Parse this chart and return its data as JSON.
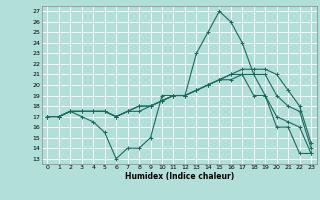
{
  "title": "",
  "xlabel": "Humidex (Indice chaleur)",
  "ylabel": "",
  "background_color": "#b2dfda",
  "grid_color": "#ffffff",
  "line_color": "#1a6b5e",
  "xlim": [
    -0.5,
    23.5
  ],
  "ylim": [
    12.5,
    27.5
  ],
  "yticks": [
    13,
    14,
    15,
    16,
    17,
    18,
    19,
    20,
    21,
    22,
    23,
    24,
    25,
    26,
    27
  ],
  "xticks": [
    0,
    1,
    2,
    3,
    4,
    5,
    6,
    7,
    8,
    9,
    10,
    11,
    12,
    13,
    14,
    15,
    16,
    17,
    18,
    19,
    20,
    21,
    22,
    23
  ],
  "lines": [
    {
      "x": [
        0,
        1,
        2,
        3,
        4,
        5,
        6,
        7,
        8,
        9,
        10,
        11,
        12,
        13,
        14,
        15,
        16,
        17,
        18,
        19,
        20,
        21,
        22,
        23
      ],
      "y": [
        17,
        17,
        17.5,
        17,
        16.5,
        15.5,
        13,
        14,
        14,
        15,
        19,
        19,
        19,
        23,
        25,
        27,
        26,
        24,
        21,
        19,
        16,
        16,
        13.5,
        13.5
      ]
    },
    {
      "x": [
        0,
        1,
        2,
        3,
        4,
        5,
        6,
        7,
        8,
        9,
        10,
        11,
        12,
        13,
        14,
        15,
        16,
        17,
        18,
        19,
        20,
        21,
        22,
        23
      ],
      "y": [
        17,
        17,
        17.5,
        17.5,
        17.5,
        17.5,
        17,
        17.5,
        18,
        18,
        18.5,
        19,
        19,
        19.5,
        20,
        20.5,
        20.5,
        21,
        19,
        19,
        17,
        16.5,
        16,
        13.5
      ]
    },
    {
      "x": [
        0,
        1,
        2,
        3,
        4,
        5,
        6,
        7,
        8,
        9,
        10,
        11,
        12,
        13,
        14,
        15,
        16,
        17,
        18,
        19,
        20,
        21,
        22,
        23
      ],
      "y": [
        17,
        17,
        17.5,
        17.5,
        17.5,
        17.5,
        17,
        17.5,
        17.5,
        18,
        18.5,
        19,
        19,
        19.5,
        20,
        20.5,
        21,
        21,
        21,
        21,
        19,
        18,
        17.5,
        14
      ]
    },
    {
      "x": [
        0,
        1,
        2,
        3,
        4,
        5,
        6,
        7,
        8,
        9,
        10,
        11,
        12,
        13,
        14,
        15,
        16,
        17,
        18,
        19,
        20,
        21,
        22,
        23
      ],
      "y": [
        17,
        17,
        17.5,
        17.5,
        17.5,
        17.5,
        17,
        17.5,
        18,
        18,
        18.5,
        19,
        19,
        19.5,
        20,
        20.5,
        21,
        21.5,
        21.5,
        21.5,
        21,
        19.5,
        18,
        14.5
      ]
    }
  ]
}
